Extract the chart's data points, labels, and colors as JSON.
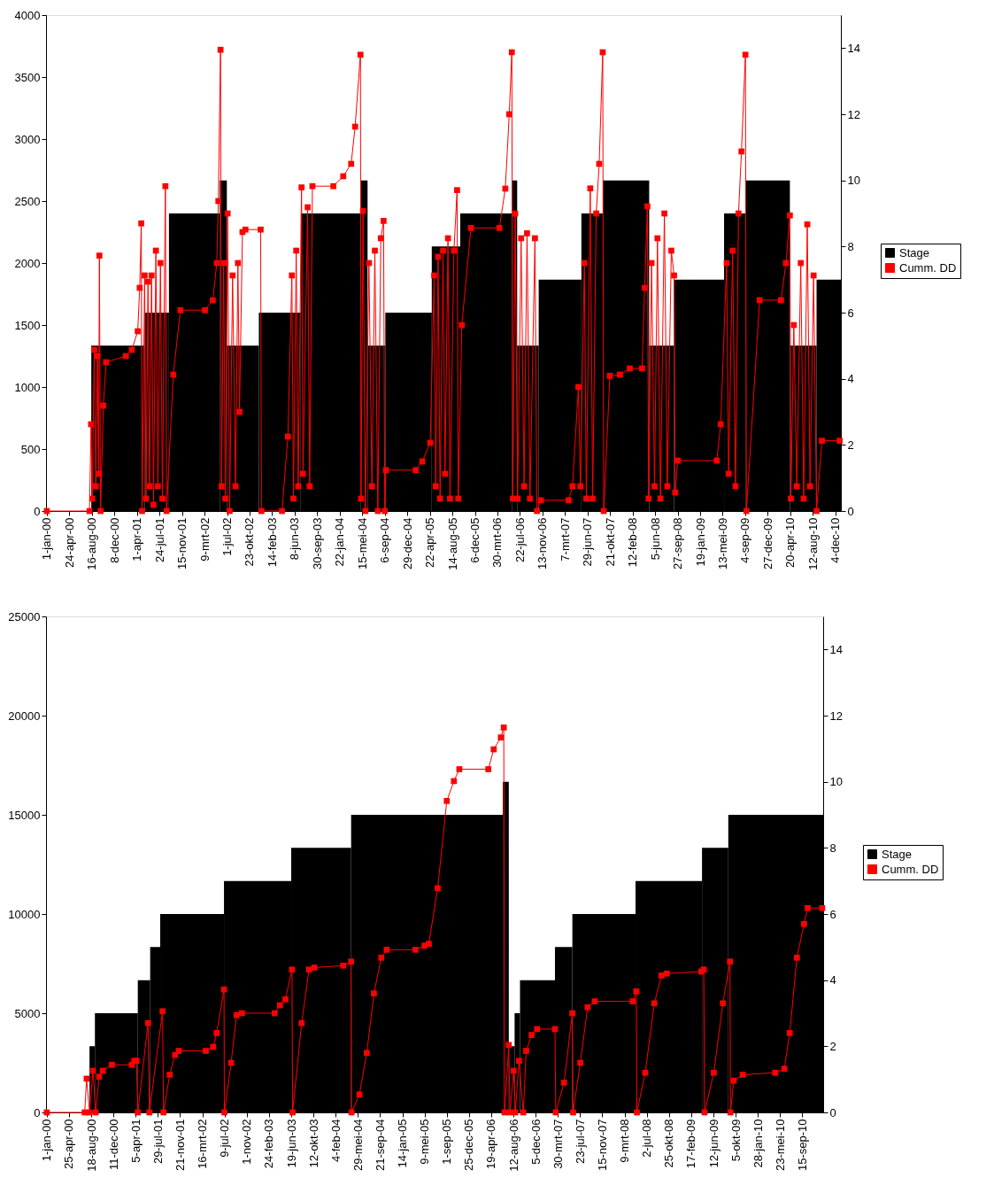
{
  "chart_data": [
    {
      "type": "line",
      "legend": "right",
      "grid": false,
      "marker": "square",
      "xlim": [
        "1999-12-28",
        "2011-01-01"
      ],
      "xticks": [
        {
          "value": "2000-01-01",
          "label": "1-jan-00"
        },
        {
          "value": "2000-04-24",
          "label": "24-apr-00"
        },
        {
          "value": "2000-08-16",
          "label": "16-aug-00"
        },
        {
          "value": "2000-12-08",
          "label": "8-dec-00"
        },
        {
          "value": "2001-04-01",
          "label": "1-apr-01"
        },
        {
          "value": "2001-07-24",
          "label": "24-jul-01"
        },
        {
          "value": "2001-11-15",
          "label": "15-nov-01"
        },
        {
          "value": "2002-03-09",
          "label": "9-mrt-02"
        },
        {
          "value": "2002-07-01",
          "label": "1-jul-02"
        },
        {
          "value": "2002-10-23",
          "label": "23-okt-02"
        },
        {
          "value": "2003-02-14",
          "label": "14-feb-03"
        },
        {
          "value": "2003-06-08",
          "label": "8-jun-03"
        },
        {
          "value": "2003-09-30",
          "label": "30-sep-03"
        },
        {
          "value": "2004-01-22",
          "label": "22-jan-04"
        },
        {
          "value": "2004-05-15",
          "label": "15-mei-04"
        },
        {
          "value": "2004-09-06",
          "label": "6-sep-04"
        },
        {
          "value": "2004-12-29",
          "label": "29-dec-04"
        },
        {
          "value": "2005-04-22",
          "label": "22-apr-05"
        },
        {
          "value": "2005-08-14",
          "label": "14-aug-05"
        },
        {
          "value": "2005-12-06",
          "label": "6-dec-05"
        },
        {
          "value": "2006-03-30",
          "label": "30-mrt-06"
        },
        {
          "value": "2006-07-22",
          "label": "22-jul-06"
        },
        {
          "value": "2006-11-13",
          "label": "13-nov-06"
        },
        {
          "value": "2007-03-07",
          "label": "7-mrt-07"
        },
        {
          "value": "2007-06-29",
          "label": "29-jun-07"
        },
        {
          "value": "2007-10-21",
          "label": "21-okt-07"
        },
        {
          "value": "2008-02-12",
          "label": "12-feb-08"
        },
        {
          "value": "2008-06-05",
          "label": "5-jun-08"
        },
        {
          "value": "2008-09-27",
          "label": "27-sep-08"
        },
        {
          "value": "2009-01-19",
          "label": "19-jan-09"
        },
        {
          "value": "2009-05-13",
          "label": "13-mei-09"
        },
        {
          "value": "2009-09-04",
          "label": "4-sep-09"
        },
        {
          "value": "2009-12-27",
          "label": "27-dec-09"
        },
        {
          "value": "2010-04-20",
          "label": "20-apr-10"
        },
        {
          "value": "2010-08-12",
          "label": "12-aug-10"
        },
        {
          "value": "2010-12-04",
          "label": "4-dec-10"
        }
      ],
      "ylim": [
        0,
        4000
      ],
      "yticks": [
        0,
        500,
        1000,
        1500,
        2000,
        2500,
        3000,
        3500,
        4000
      ],
      "y2lim": [
        0,
        15
      ],
      "y2ticks": [
        0,
        2,
        4,
        6,
        8,
        10,
        12,
        14
      ],
      "series": [
        {
          "name": "Stage",
          "type": "area",
          "axis": "y2",
          "color": "#000000",
          "marker": "none",
          "x": [
            "2000-01-01",
            "2000-08-13",
            "2001-05-11",
            "2001-09-10",
            "2002-05-25",
            "2002-06-30",
            "2002-12-09",
            "2003-07-09",
            "2004-05-06",
            "2004-06-11",
            "2004-09-09",
            "2005-05-02",
            "2005-09-23",
            "2006-06-11",
            "2006-07-08",
            "2006-10-25",
            "2007-05-29",
            "2007-09-14",
            "2008-05-06",
            "2008-09-09",
            "2009-05-20",
            "2009-09-05",
            "2010-04-18",
            "2010-08-31",
            "2011-01-01"
          ],
          "values": [
            0,
            5,
            6,
            9,
            10,
            5,
            6,
            9,
            10,
            5,
            6,
            8,
            9,
            10,
            5,
            7,
            9,
            10,
            5,
            7,
            9,
            10,
            5,
            7,
            7
          ]
        },
        {
          "name": "Cumm. DD",
          "type": "line",
          "color": "#ff0000",
          "x": [
            "2000-01-01",
            "2000-08-04",
            "2000-08-12",
            "2000-08-18",
            "2000-08-28",
            "2000-09-05",
            "2000-09-13",
            "2000-09-19",
            "2000-09-23",
            "2000-09-29",
            "2000-10-13",
            "2000-10-27",
            "2001-02-04",
            "2001-03-06",
            "2001-04-05",
            "2001-04-15",
            "2001-04-23",
            "2001-04-27",
            "2001-05-10",
            "2001-05-17",
            "2001-05-27",
            "2001-06-04",
            "2001-06-14",
            "2001-06-24",
            "2001-07-06",
            "2001-07-16",
            "2001-07-29",
            "2001-08-08",
            "2001-08-23",
            "2001-08-29",
            "2001-10-02",
            "2001-11-07",
            "2002-03-11",
            "2002-04-20",
            "2002-05-10",
            "2002-05-18",
            "2002-05-29",
            "2002-06-03",
            "2002-06-14",
            "2002-06-22",
            "2002-07-04",
            "2002-07-14",
            "2002-07-29",
            "2002-08-13",
            "2002-08-25",
            "2002-09-02",
            "2002-09-17",
            "2002-10-02",
            "2002-12-18",
            "2002-12-22",
            "2003-04-05",
            "2003-05-05",
            "2003-05-25",
            "2003-06-02",
            "2003-06-16",
            "2003-06-26",
            "2003-07-13",
            "2003-07-20",
            "2003-08-13",
            "2003-08-23",
            "2003-09-06",
            "2003-12-21",
            "2004-02-09",
            "2004-03-20",
            "2004-04-09",
            "2004-05-06",
            "2004-05-09",
            "2004-05-19",
            "2004-05-31",
            "2004-06-18",
            "2004-07-03",
            "2004-07-18",
            "2004-08-02",
            "2004-08-17",
            "2004-08-31",
            "2004-09-06",
            "2004-09-12",
            "2005-02-10",
            "2005-03-15",
            "2005-04-24",
            "2005-05-14",
            "2005-05-22",
            "2005-06-03",
            "2005-06-13",
            "2005-06-28",
            "2005-07-08",
            "2005-07-23",
            "2005-08-02",
            "2005-08-22",
            "2005-09-07",
            "2005-09-13",
            "2005-10-01",
            "2005-11-16",
            "2006-04-09",
            "2006-05-09",
            "2006-05-29",
            "2006-06-11",
            "2006-06-16",
            "2006-06-28",
            "2006-07-10",
            "2006-07-28",
            "2006-08-12",
            "2006-08-27",
            "2006-09-11",
            "2006-10-06",
            "2006-10-16",
            "2006-11-05",
            "2007-03-25",
            "2007-04-14",
            "2007-05-14",
            "2007-05-24",
            "2007-06-13",
            "2007-06-23",
            "2007-07-13",
            "2007-07-25",
            "2007-08-12",
            "2007-08-27",
            "2007-09-14",
            "2007-09-19",
            "2007-10-20",
            "2007-12-10",
            "2008-01-29",
            "2008-03-31",
            "2008-04-13",
            "2008-04-27",
            "2008-05-03",
            "2008-05-18",
            "2008-06-02",
            "2008-06-17",
            "2008-07-02",
            "2008-07-22",
            "2008-08-06",
            "2008-08-26",
            "2008-09-09",
            "2008-09-15",
            "2008-09-27",
            "2009-04-13",
            "2009-05-03",
            "2009-06-02",
            "2009-06-12",
            "2009-07-02",
            "2009-07-17",
            "2009-08-01",
            "2009-08-16",
            "2009-09-05",
            "2009-09-10",
            "2009-11-16",
            "2010-03-04",
            "2010-03-29",
            "2010-04-18",
            "2010-04-23",
            "2010-05-08",
            "2010-05-23",
            "2010-06-12",
            "2010-06-27",
            "2010-07-15",
            "2010-07-29",
            "2010-08-16",
            "2010-08-31",
            "2010-09-27",
            "2010-12-26"
          ],
          "values": [
            0,
            0,
            700,
            100,
            1300,
            200,
            1250,
            300,
            2060,
            0,
            850,
            1200,
            1250,
            1300,
            1450,
            1800,
            2320,
            0,
            1900,
            100,
            1850,
            200,
            1900,
            50,
            2100,
            200,
            2000,
            100,
            2620,
            0,
            1100,
            1620,
            1620,
            1700,
            2000,
            2500,
            3720,
            200,
            2000,
            100,
            2400,
            0,
            1900,
            200,
            2000,
            800,
            2250,
            2270,
            2270,
            0,
            0,
            600,
            1900,
            100,
            2100,
            200,
            2610,
            300,
            2450,
            200,
            2620,
            2620,
            2700,
            2800,
            3100,
            3680,
            100,
            2420,
            0,
            2000,
            200,
            2100,
            0,
            2200,
            2340,
            0,
            330,
            330,
            400,
            550,
            1900,
            200,
            2050,
            100,
            2100,
            300,
            2200,
            100,
            2100,
            2588,
            100,
            1500,
            2283,
            2283,
            2600,
            3200,
            3700,
            100,
            2399,
            100,
            2200,
            200,
            2240,
            100,
            2200,
            0,
            87,
            87,
            200,
            1000,
            200,
            2000,
            100,
            2602,
            100,
            2400,
            2800,
            3700,
            0,
            1090,
            1100,
            1150,
            1150,
            1800,
            2457,
            100,
            2000,
            200,
            2200,
            100,
            2400,
            200,
            2100,
            1900,
            150,
            407,
            407,
            700,
            2000,
            300,
            2100,
            200,
            2400,
            2900,
            3680,
            0,
            1701,
            1701,
            2000,
            2384,
            100,
            1500,
            200,
            2000,
            100,
            2312,
            200,
            1900,
            0,
            567,
            567
          ]
        }
      ]
    },
    {
      "type": "line",
      "legend": "right",
      "grid": false,
      "marker": "square",
      "xlim": [
        "1999-12-28",
        "2011-01-01"
      ],
      "xticks": [
        {
          "value": "2000-01-01",
          "label": "1-jan-00"
        },
        {
          "value": "2000-04-25",
          "label": "25-apr-00"
        },
        {
          "value": "2000-08-18",
          "label": "18-aug-00"
        },
        {
          "value": "2000-12-11",
          "label": "11-dec-00"
        },
        {
          "value": "2001-04-05",
          "label": "5-apr-01"
        },
        {
          "value": "2001-07-29",
          "label": "29-jul-01"
        },
        {
          "value": "2001-11-21",
          "label": "21-nov-01"
        },
        {
          "value": "2002-03-16",
          "label": "16-mrt-02"
        },
        {
          "value": "2002-07-09",
          "label": "9-jul-02"
        },
        {
          "value": "2002-11-01",
          "label": "1-nov-02"
        },
        {
          "value": "2003-02-24",
          "label": "24-feb-03"
        },
        {
          "value": "2003-06-19",
          "label": "19-jun-03"
        },
        {
          "value": "2003-10-12",
          "label": "12-okt-03"
        },
        {
          "value": "2004-02-04",
          "label": "4-feb-04"
        },
        {
          "value": "2004-05-29",
          "label": "29-mei-04"
        },
        {
          "value": "2004-09-21",
          "label": "21-sep-04"
        },
        {
          "value": "2005-01-14",
          "label": "14-jan-05"
        },
        {
          "value": "2005-05-09",
          "label": "9-mei-05"
        },
        {
          "value": "2005-09-01",
          "label": "1-sep-05"
        },
        {
          "value": "2005-12-25",
          "label": "25-dec-05"
        },
        {
          "value": "2006-04-19",
          "label": "19-apr-06"
        },
        {
          "value": "2006-08-12",
          "label": "12-aug-06"
        },
        {
          "value": "2006-12-05",
          "label": "5-dec-06"
        },
        {
          "value": "2007-03-30",
          "label": "30-mrt-07"
        },
        {
          "value": "2007-07-23",
          "label": "23-jul-07"
        },
        {
          "value": "2007-11-15",
          "label": "15-nov-07"
        },
        {
          "value": "2008-03-09",
          "label": "9-mrt-08"
        },
        {
          "value": "2008-07-02",
          "label": "2-jul-08"
        },
        {
          "value": "2008-10-25",
          "label": "25-okt-08"
        },
        {
          "value": "2009-02-17",
          "label": "17-feb-09"
        },
        {
          "value": "2009-06-12",
          "label": "12-jun-09"
        },
        {
          "value": "2009-10-05",
          "label": "5-okt-09"
        },
        {
          "value": "2010-01-28",
          "label": "28-jan-10"
        },
        {
          "value": "2010-05-23",
          "label": "23-mei-10"
        },
        {
          "value": "2010-09-15",
          "label": "15-sep-10"
        }
      ],
      "ylim": [
        0,
        25000
      ],
      "yticks": [
        0,
        5000,
        10000,
        15000,
        20000,
        25000
      ],
      "y2lim": [
        0,
        15
      ],
      "y2ticks": [
        0,
        2,
        4,
        6,
        8,
        10,
        12,
        14
      ],
      "series": [
        {
          "name": "Stage",
          "type": "area",
          "axis": "y2",
          "color": "#000000",
          "marker": "none",
          "x": [
            "2000-01-01",
            "2000-08-09",
            "2000-09-06",
            "2001-04-16",
            "2001-06-19",
            "2001-08-10",
            "2002-07-06",
            "2003-06-19",
            "2004-04-24",
            "2006-06-18",
            "2006-07-19",
            "2006-08-18",
            "2006-09-15",
            "2007-03-15",
            "2007-06-13",
            "2008-05-05",
            "2009-04-14",
            "2009-08-28",
            "2011-01-01"
          ],
          "values": [
            0,
            2,
            3,
            4,
            5,
            6,
            7,
            8,
            9,
            10,
            2,
            3,
            4,
            5,
            6,
            7,
            8,
            9,
            9
          ]
        },
        {
          "name": "Cumm. DD",
          "type": "line",
          "color": "#ff0000",
          "x": [
            "2000-01-01",
            "2000-07-15",
            "2000-07-25",
            "2000-08-09",
            "2000-08-27",
            "2000-09-10",
            "2000-09-28",
            "2000-10-17",
            "2000-12-03",
            "2001-03-16",
            "2001-03-29",
            "2001-04-09",
            "2001-04-16",
            "2001-06-08",
            "2001-06-15",
            "2001-08-22",
            "2001-08-27",
            "2001-09-28",
            "2001-10-26",
            "2001-11-14",
            "2002-04-03",
            "2002-05-11",
            "2002-05-29",
            "2002-07-06",
            "2002-07-08",
            "2002-08-12",
            "2002-09-09",
            "2002-10-07",
            "2003-03-25",
            "2003-04-22",
            "2003-05-20",
            "2003-06-23",
            "2003-06-26",
            "2003-08-12",
            "2003-09-19",
            "2003-10-17",
            "2004-03-14",
            "2004-04-24",
            "2004-04-26",
            "2004-06-06",
            "2004-07-14",
            "2004-08-20",
            "2004-09-27",
            "2004-10-25",
            "2005-03-23",
            "2005-05-09",
            "2005-05-31",
            "2005-07-16",
            "2005-09-01",
            "2005-10-08",
            "2005-11-05",
            "2006-04-04",
            "2006-05-02",
            "2006-06-08",
            "2006-06-23",
            "2006-06-27",
            "2006-07-19",
            "2006-07-25",
            "2006-08-13",
            "2006-08-22",
            "2006-09-10",
            "2006-10-02",
            "2006-10-17",
            "2006-11-14",
            "2006-12-12",
            "2007-03-15",
            "2007-03-19",
            "2007-05-01",
            "2007-06-13",
            "2007-06-17",
            "2007-07-24",
            "2007-08-31",
            "2007-10-07",
            "2008-04-20",
            "2008-05-09",
            "2008-05-12",
            "2008-06-24",
            "2008-08-10",
            "2008-09-16",
            "2008-10-14",
            "2009-04-10",
            "2009-04-23",
            "2009-04-27",
            "2009-06-14",
            "2009-07-31",
            "2009-09-06",
            "2009-09-08",
            "2009-09-25",
            "2009-11-11",
            "2010-04-28",
            "2010-06-14",
            "2010-07-12",
            "2010-08-18",
            "2010-09-24",
            "2010-10-13",
            "2010-12-27"
          ],
          "values": [
            0,
            0,
            1700,
            0,
            2100,
            0,
            1800,
            2100,
            2400,
            2400,
            2600,
            2600,
            0,
            4500,
            0,
            5100,
            0,
            1900,
            2900,
            3100,
            3100,
            3300,
            4000,
            6200,
            0,
            2500,
            4900,
            5000,
            5000,
            5400,
            5700,
            7200,
            0,
            4500,
            7200,
            7300,
            7400,
            7600,
            0,
            900,
            3000,
            6000,
            7800,
            8200,
            8200,
            8400,
            8500,
            11300,
            15700,
            16700,
            17300,
            17300,
            18300,
            18900,
            19400,
            0,
            3400,
            0,
            2100,
            0,
            2600,
            0,
            3100,
            3900,
            4200,
            4200,
            0,
            1500,
            5000,
            0,
            2500,
            5300,
            5600,
            5600,
            6100,
            0,
            2000,
            5500,
            6900,
            7000,
            7100,
            7200,
            0,
            2000,
            5500,
            7600,
            0,
            1600,
            1900,
            2000,
            2200,
            4000,
            7800,
            9500,
            10300,
            10300
          ]
        }
      ]
    }
  ]
}
